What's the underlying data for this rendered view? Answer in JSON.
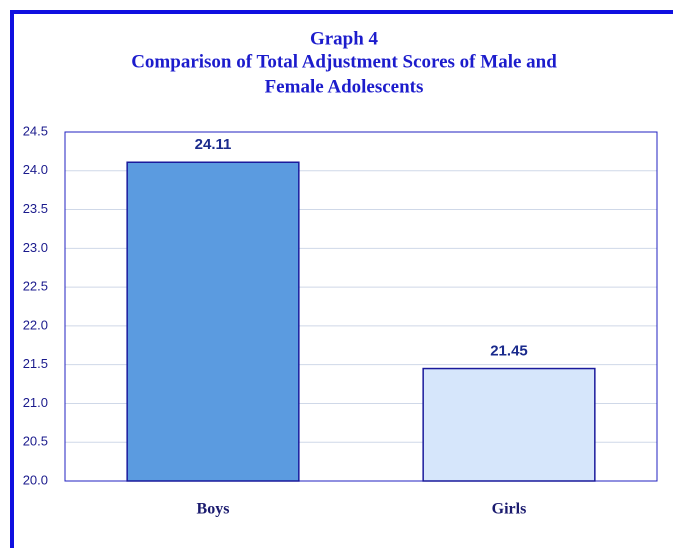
{
  "chart_data": {
    "type": "bar",
    "title": "Graph 4",
    "subtitle": [
      "Comparison of Total Adjustment Scores of Male and",
      "Female Adolescents"
    ],
    "categories": [
      "Boys",
      "Girls"
    ],
    "values": [
      24.11,
      21.45
    ],
    "colors": [
      "#5b9be0",
      "#d6e6fb"
    ],
    "ylim": [
      20.0,
      24.5
    ],
    "yticks": [
      {
        "value": 20,
        "label": "20.0"
      },
      20.5,
      {
        "value": 21,
        "label": "21.0"
      },
      21.5,
      {
        "value": 22,
        "label": "22.0"
      },
      22.5,
      {
        "value": 23,
        "label": "23.0"
      },
      23.5,
      {
        "value": 24,
        "label": "24.0"
      },
      24.5
    ],
    "grid": true
  }
}
